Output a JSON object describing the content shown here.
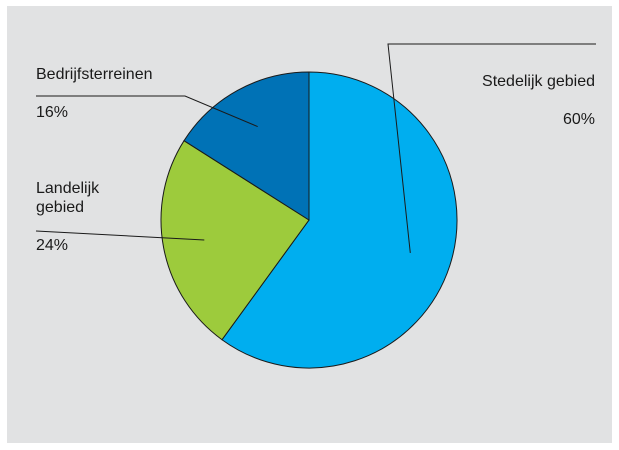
{
  "chart_data": {
    "type": "pie",
    "title": "",
    "slices": [
      {
        "label": "Stedelijk gebied",
        "value": 60,
        "value_label": "60%",
        "color": "#00aeef"
      },
      {
        "label": "Landelijk\ngebied",
        "value": 24,
        "value_label": "24%",
        "color": "#9dcb3c"
      },
      {
        "label": "Bedrijfsterreinen",
        "value": 16,
        "value_label": "16%",
        "color": "#0072b6"
      }
    ],
    "start_angle": "12 o'clock",
    "direction": "clockwise",
    "legend": "none",
    "label_style": "callout lines"
  }
}
